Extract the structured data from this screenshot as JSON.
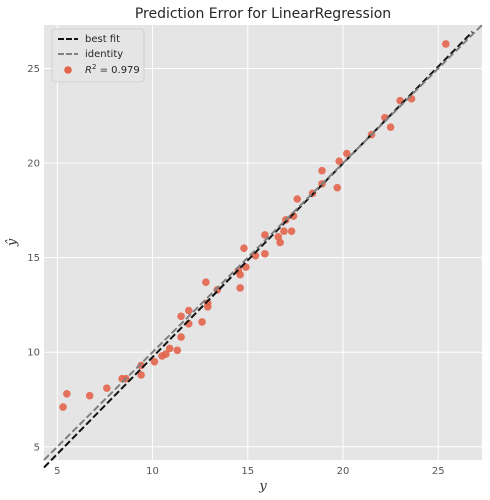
{
  "chart_data": {
    "type": "scatter",
    "title": "Prediction Error for LinearRegression",
    "xlabel": "y",
    "ylabel": "ŷ",
    "xlim": [
      4.3,
      27.3
    ],
    "ylim": [
      4.3,
      27.3
    ],
    "xticks": [
      5,
      10,
      15,
      20,
      25
    ],
    "yticks": [
      5,
      10,
      15,
      20,
      25
    ],
    "grid": true,
    "legend_position": "top-left",
    "legend": {
      "best_fit_label": "best fit",
      "identity_label": "identity",
      "r2_prefix": "R",
      "r2_suffix": " = 0.979"
    },
    "best_fit": {
      "slope": 1.024,
      "intercept": -0.5,
      "x_start": 4.3,
      "x_end": 26.8
    },
    "identity": {
      "x_start": 4.3,
      "x_end": 27.3
    },
    "points": [
      {
        "x": 5.3,
        "y": 7.1
      },
      {
        "x": 5.5,
        "y": 7.8
      },
      {
        "x": 6.7,
        "y": 7.7
      },
      {
        "x": 7.6,
        "y": 8.1
      },
      {
        "x": 8.4,
        "y": 8.6
      },
      {
        "x": 8.6,
        "y": 8.6
      },
      {
        "x": 9.4,
        "y": 8.8
      },
      {
        "x": 9.4,
        "y": 9.3
      },
      {
        "x": 10.1,
        "y": 9.5
      },
      {
        "x": 10.5,
        "y": 9.8
      },
      {
        "x": 10.7,
        "y": 9.9
      },
      {
        "x": 10.9,
        "y": 10.2
      },
      {
        "x": 11.3,
        "y": 10.1
      },
      {
        "x": 11.5,
        "y": 10.8
      },
      {
        "x": 11.5,
        "y": 11.9
      },
      {
        "x": 11.9,
        "y": 11.5
      },
      {
        "x": 11.9,
        "y": 12.2
      },
      {
        "x": 12.6,
        "y": 11.6
      },
      {
        "x": 12.8,
        "y": 13.7
      },
      {
        "x": 12.9,
        "y": 12.4
      },
      {
        "x": 12.9,
        "y": 12.6
      },
      {
        "x": 13.4,
        "y": 13.3
      },
      {
        "x": 14.5,
        "y": 14.3
      },
      {
        "x": 14.6,
        "y": 14.1
      },
      {
        "x": 14.6,
        "y": 13.4
      },
      {
        "x": 14.8,
        "y": 15.5
      },
      {
        "x": 14.9,
        "y": 14.5
      },
      {
        "x": 15.4,
        "y": 15.1
      },
      {
        "x": 15.9,
        "y": 15.2
      },
      {
        "x": 15.9,
        "y": 16.2
      },
      {
        "x": 16.6,
        "y": 16.1
      },
      {
        "x": 16.7,
        "y": 15.8
      },
      {
        "x": 16.9,
        "y": 16.4
      },
      {
        "x": 17.0,
        "y": 17.0
      },
      {
        "x": 17.3,
        "y": 16.4
      },
      {
        "x": 17.4,
        "y": 17.2
      },
      {
        "x": 17.6,
        "y": 18.1
      },
      {
        "x": 18.4,
        "y": 18.4
      },
      {
        "x": 18.9,
        "y": 18.9
      },
      {
        "x": 18.9,
        "y": 19.6
      },
      {
        "x": 19.7,
        "y": 18.7
      },
      {
        "x": 19.8,
        "y": 20.1
      },
      {
        "x": 20.2,
        "y": 20.5
      },
      {
        "x": 21.5,
        "y": 21.5
      },
      {
        "x": 22.2,
        "y": 22.4
      },
      {
        "x": 22.5,
        "y": 21.9
      },
      {
        "x": 23.0,
        "y": 23.3
      },
      {
        "x": 23.6,
        "y": 23.4
      },
      {
        "x": 25.4,
        "y": 26.3
      }
    ],
    "colors": {
      "background": "#e5e5e5",
      "grid": "#ffffff",
      "point": "#e2644b",
      "best_fit": "#111111",
      "identity": "#808080"
    }
  }
}
